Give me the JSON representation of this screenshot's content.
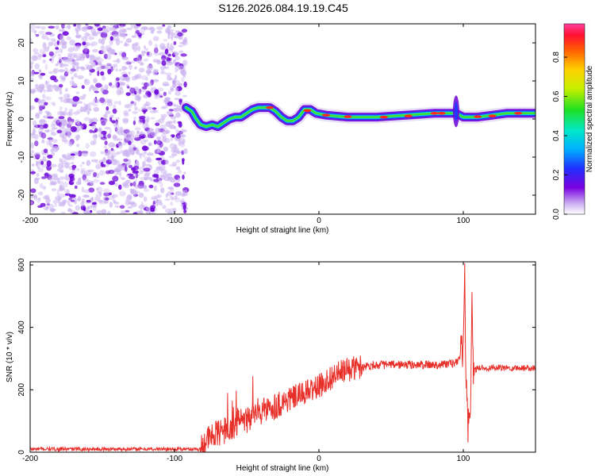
{
  "title": "S126.2026.084.19.19.C45",
  "colors": {
    "frame": "#000000",
    "snr_line": "#e8302a",
    "speckle_dark": "#6a00d8",
    "speckle_light": "#c9b0ef"
  },
  "chart_data": [
    {
      "type": "heatmap",
      "name": "spectrogram",
      "xlabel": "Height of straight line (km)",
      "ylabel": "Frequency (Hz)",
      "xlim": [
        -200,
        150
      ],
      "ylim": [
        -25,
        25
      ],
      "xticks": [
        "-200",
        "-100",
        "0",
        "100"
      ],
      "xtick_values": [
        -200,
        -100,
        0,
        100
      ],
      "yticks": [
        "-20",
        "-10",
        "0",
        "10",
        "20"
      ],
      "ytick_values": [
        -20,
        -10,
        0,
        10,
        20
      ],
      "noise_region": [
        -200,
        -92
      ],
      "ridge": {
        "x": [
          -92,
          -88,
          -85,
          -82,
          -78,
          -74,
          -70,
          -66,
          -62,
          -58,
          -54,
          -50,
          -46,
          -42,
          -38,
          -34,
          -30,
          -26,
          -22,
          -18,
          -14,
          -10,
          -6,
          -2,
          5,
          20,
          40,
          60,
          80,
          90,
          95,
          100,
          110,
          130,
          150
        ],
        "y": [
          3,
          2,
          0,
          -1.5,
          -2,
          -1.5,
          -2,
          -1,
          0,
          0.5,
          0.5,
          1.5,
          2.5,
          3,
          3,
          3,
          2,
          0.5,
          -0.5,
          -0.5,
          0.5,
          2.5,
          2.5,
          1.5,
          1,
          0.5,
          0.5,
          1,
          1.5,
          1.5,
          1.5,
          0.5,
          0.5,
          1.5,
          1.5
        ]
      },
      "colorbar": {
        "label": "Normalized spectral amplitude",
        "ticks": [
          "0.0",
          "0.2",
          "0.4",
          "0.6",
          "0.8"
        ],
        "tick_values": [
          0.0,
          0.2,
          0.4,
          0.6,
          0.8
        ],
        "range": [
          0,
          0.97
        ]
      }
    },
    {
      "type": "line",
      "name": "snr",
      "xlabel": "Height of straight line (km)",
      "ylabel": "SNR (10 * v/v)",
      "xlim": [
        -200,
        150
      ],
      "ylim": [
        0,
        610
      ],
      "xticks": [
        "-200",
        "-100",
        "0",
        "100"
      ],
      "xtick_values": [
        -200,
        -100,
        0,
        100
      ],
      "yticks": [
        "0",
        "200",
        "400",
        "600"
      ],
      "ytick_values": [
        0,
        200,
        400,
        600
      ],
      "series": [
        {
          "name": "SNR",
          "x": [
            -200,
            -150,
            -100,
            -82,
            -78,
            -70,
            -60,
            -50,
            -40,
            -30,
            -20,
            -10,
            0,
            10,
            20,
            30,
            40,
            60,
            80,
            95,
            100,
            101,
            102,
            103,
            104,
            105,
            106,
            107,
            110,
            130,
            150
          ],
          "values": [
            10,
            10,
            10,
            10,
            40,
            60,
            80,
            105,
            130,
            150,
            170,
            190,
            210,
            245,
            265,
            275,
            280,
            280,
            280,
            285,
            330,
            560,
            200,
            100,
            60,
            120,
            470,
            260,
            270,
            270,
            270
          ]
        }
      ]
    }
  ]
}
